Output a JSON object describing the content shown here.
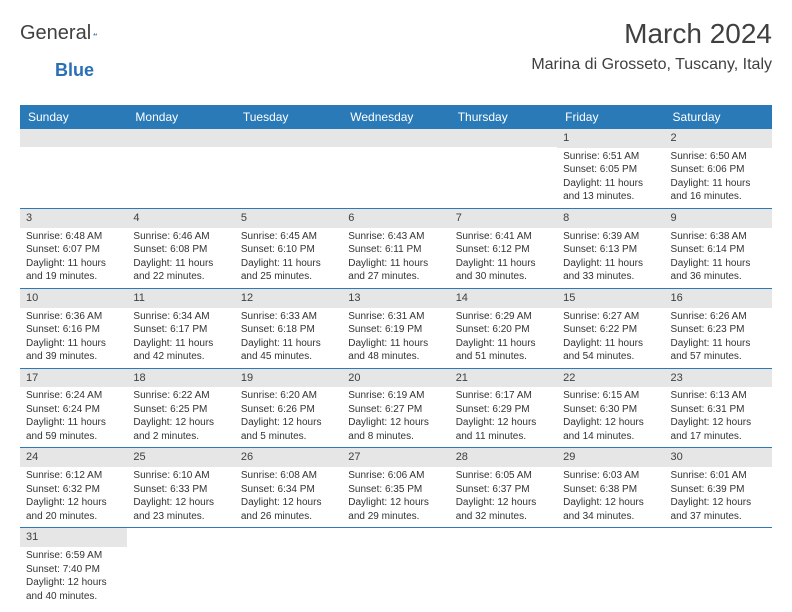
{
  "logo": {
    "text1": "General",
    "text2": "Blue"
  },
  "title": "March 2024",
  "location": "Marina di Grosseto, Tuscany, Italy",
  "colors": {
    "header_bg": "#2a7ab8",
    "header_text": "#ffffff",
    "daynum_bg": "#e6e6e6",
    "border": "#2a7ab8",
    "text": "#333333",
    "logo_blue": "#2a6fb5",
    "title_color": "#404040"
  },
  "weekdays": [
    "Sunday",
    "Monday",
    "Tuesday",
    "Wednesday",
    "Thursday",
    "Friday",
    "Saturday"
  ],
  "weeks": [
    [
      {
        "day": "",
        "lines": []
      },
      {
        "day": "",
        "lines": []
      },
      {
        "day": "",
        "lines": []
      },
      {
        "day": "",
        "lines": []
      },
      {
        "day": "",
        "lines": []
      },
      {
        "day": "1",
        "lines": [
          "Sunrise: 6:51 AM",
          "Sunset: 6:05 PM",
          "Daylight: 11 hours and 13 minutes."
        ]
      },
      {
        "day": "2",
        "lines": [
          "Sunrise: 6:50 AM",
          "Sunset: 6:06 PM",
          "Daylight: 11 hours and 16 minutes."
        ]
      }
    ],
    [
      {
        "day": "3",
        "lines": [
          "Sunrise: 6:48 AM",
          "Sunset: 6:07 PM",
          "Daylight: 11 hours and 19 minutes."
        ]
      },
      {
        "day": "4",
        "lines": [
          "Sunrise: 6:46 AM",
          "Sunset: 6:08 PM",
          "Daylight: 11 hours and 22 minutes."
        ]
      },
      {
        "day": "5",
        "lines": [
          "Sunrise: 6:45 AM",
          "Sunset: 6:10 PM",
          "Daylight: 11 hours and 25 minutes."
        ]
      },
      {
        "day": "6",
        "lines": [
          "Sunrise: 6:43 AM",
          "Sunset: 6:11 PM",
          "Daylight: 11 hours and 27 minutes."
        ]
      },
      {
        "day": "7",
        "lines": [
          "Sunrise: 6:41 AM",
          "Sunset: 6:12 PM",
          "Daylight: 11 hours and 30 minutes."
        ]
      },
      {
        "day": "8",
        "lines": [
          "Sunrise: 6:39 AM",
          "Sunset: 6:13 PM",
          "Daylight: 11 hours and 33 minutes."
        ]
      },
      {
        "day": "9",
        "lines": [
          "Sunrise: 6:38 AM",
          "Sunset: 6:14 PM",
          "Daylight: 11 hours and 36 minutes."
        ]
      }
    ],
    [
      {
        "day": "10",
        "lines": [
          "Sunrise: 6:36 AM",
          "Sunset: 6:16 PM",
          "Daylight: 11 hours and 39 minutes."
        ]
      },
      {
        "day": "11",
        "lines": [
          "Sunrise: 6:34 AM",
          "Sunset: 6:17 PM",
          "Daylight: 11 hours and 42 minutes."
        ]
      },
      {
        "day": "12",
        "lines": [
          "Sunrise: 6:33 AM",
          "Sunset: 6:18 PM",
          "Daylight: 11 hours and 45 minutes."
        ]
      },
      {
        "day": "13",
        "lines": [
          "Sunrise: 6:31 AM",
          "Sunset: 6:19 PM",
          "Daylight: 11 hours and 48 minutes."
        ]
      },
      {
        "day": "14",
        "lines": [
          "Sunrise: 6:29 AM",
          "Sunset: 6:20 PM",
          "Daylight: 11 hours and 51 minutes."
        ]
      },
      {
        "day": "15",
        "lines": [
          "Sunrise: 6:27 AM",
          "Sunset: 6:22 PM",
          "Daylight: 11 hours and 54 minutes."
        ]
      },
      {
        "day": "16",
        "lines": [
          "Sunrise: 6:26 AM",
          "Sunset: 6:23 PM",
          "Daylight: 11 hours and 57 minutes."
        ]
      }
    ],
    [
      {
        "day": "17",
        "lines": [
          "Sunrise: 6:24 AM",
          "Sunset: 6:24 PM",
          "Daylight: 11 hours and 59 minutes."
        ]
      },
      {
        "day": "18",
        "lines": [
          "Sunrise: 6:22 AM",
          "Sunset: 6:25 PM",
          "Daylight: 12 hours and 2 minutes."
        ]
      },
      {
        "day": "19",
        "lines": [
          "Sunrise: 6:20 AM",
          "Sunset: 6:26 PM",
          "Daylight: 12 hours and 5 minutes."
        ]
      },
      {
        "day": "20",
        "lines": [
          "Sunrise: 6:19 AM",
          "Sunset: 6:27 PM",
          "Daylight: 12 hours and 8 minutes."
        ]
      },
      {
        "day": "21",
        "lines": [
          "Sunrise: 6:17 AM",
          "Sunset: 6:29 PM",
          "Daylight: 12 hours and 11 minutes."
        ]
      },
      {
        "day": "22",
        "lines": [
          "Sunrise: 6:15 AM",
          "Sunset: 6:30 PM",
          "Daylight: 12 hours and 14 minutes."
        ]
      },
      {
        "day": "23",
        "lines": [
          "Sunrise: 6:13 AM",
          "Sunset: 6:31 PM",
          "Daylight: 12 hours and 17 minutes."
        ]
      }
    ],
    [
      {
        "day": "24",
        "lines": [
          "Sunrise: 6:12 AM",
          "Sunset: 6:32 PM",
          "Daylight: 12 hours and 20 minutes."
        ]
      },
      {
        "day": "25",
        "lines": [
          "Sunrise: 6:10 AM",
          "Sunset: 6:33 PM",
          "Daylight: 12 hours and 23 minutes."
        ]
      },
      {
        "day": "26",
        "lines": [
          "Sunrise: 6:08 AM",
          "Sunset: 6:34 PM",
          "Daylight: 12 hours and 26 minutes."
        ]
      },
      {
        "day": "27",
        "lines": [
          "Sunrise: 6:06 AM",
          "Sunset: 6:35 PM",
          "Daylight: 12 hours and 29 minutes."
        ]
      },
      {
        "day": "28",
        "lines": [
          "Sunrise: 6:05 AM",
          "Sunset: 6:37 PM",
          "Daylight: 12 hours and 32 minutes."
        ]
      },
      {
        "day": "29",
        "lines": [
          "Sunrise: 6:03 AM",
          "Sunset: 6:38 PM",
          "Daylight: 12 hours and 34 minutes."
        ]
      },
      {
        "day": "30",
        "lines": [
          "Sunrise: 6:01 AM",
          "Sunset: 6:39 PM",
          "Daylight: 12 hours and 37 minutes."
        ]
      }
    ],
    [
      {
        "day": "31",
        "lines": [
          "Sunrise: 6:59 AM",
          "Sunset: 7:40 PM",
          "Daylight: 12 hours and 40 minutes."
        ]
      },
      {
        "day": "",
        "lines": []
      },
      {
        "day": "",
        "lines": []
      },
      {
        "day": "",
        "lines": []
      },
      {
        "day": "",
        "lines": []
      },
      {
        "day": "",
        "lines": []
      },
      {
        "day": "",
        "lines": []
      }
    ]
  ]
}
